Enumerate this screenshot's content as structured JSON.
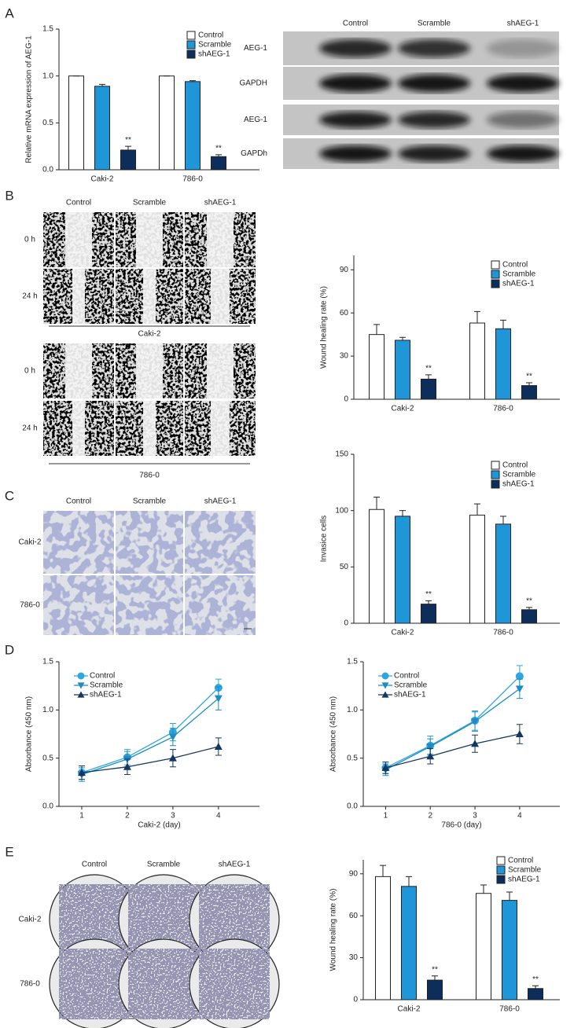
{
  "figure": {
    "panel_labels": [
      "A",
      "B",
      "C",
      "D",
      "E"
    ],
    "blot": {
      "columns": [
        "Control",
        "Scramble",
        "shAEG-1"
      ],
      "rows": [
        "AEG-1",
        "GAPDH",
        "AEG-1",
        "GAPDh"
      ]
    },
    "wound": {
      "columns": [
        "Control",
        "Scramble",
        "shAEG-1"
      ],
      "blocks": [
        {
          "rows": [
            "0 h",
            "24 h"
          ],
          "caption": "Caki-2"
        },
        {
          "rows": [
            "0 h",
            "24 h"
          ],
          "caption": "786-0"
        }
      ]
    },
    "invasion": {
      "columns": [
        "Control",
        "Scramble",
        "shAEG-1"
      ],
      "rows": [
        "Caki-2",
        "786-0"
      ]
    },
    "colony": {
      "columns": [
        "Control",
        "Scramble",
        "shAEG-1"
      ],
      "rows": [
        "Caki-2",
        "786-0"
      ]
    }
  },
  "chart_data": [
    {
      "type": "bar",
      "ylabel": "Relative mRNA expression of AEG-1",
      "categories": [
        "Caki-2",
        "786-0"
      ],
      "series": [
        {
          "name": "Control",
          "color": "#ffffff",
          "values": [
            1.0,
            1.0
          ],
          "errors": [
            0,
            0
          ]
        },
        {
          "name": "Scramble",
          "color": "#1e96d8",
          "values": [
            0.89,
            0.94
          ],
          "errors": [
            0.02,
            0.01
          ]
        },
        {
          "name": "shAEG-1",
          "color": "#0d2d5a",
          "values": [
            0.21,
            0.14
          ],
          "errors": [
            0.04,
            0.02
          ],
          "significance": [
            "**",
            "**"
          ]
        }
      ],
      "ylim": [
        0,
        1.5
      ],
      "yticks": [
        {
          "value": 0,
          "label": "0.0"
        },
        0.5,
        {
          "value": 1,
          "label": "1.0"
        },
        1.5
      ]
    },
    {
      "type": "bar",
      "ylabel": "Wound healing rate (%)",
      "categories": [
        "Caki-2",
        "786-0"
      ],
      "series": [
        {
          "name": "Control",
          "color": "#ffffff",
          "values": [
            45,
            53
          ],
          "errors": [
            7,
            8
          ]
        },
        {
          "name": "Scramble",
          "color": "#1e96d8",
          "values": [
            41,
            49
          ],
          "errors": [
            2,
            6
          ]
        },
        {
          "name": "shAEG-1",
          "color": "#0d2d5a",
          "values": [
            14,
            9.5
          ],
          "errors": [
            3,
            2
          ],
          "significance": [
            "**",
            "**"
          ]
        }
      ],
      "ylim": [
        0,
        100
      ],
      "yticks": [
        0,
        30,
        60,
        90
      ]
    },
    {
      "type": "bar",
      "ylabel": "Invasice cells",
      "categories": [
        "Caki-2",
        "786-0"
      ],
      "series": [
        {
          "name": "Control",
          "color": "#ffffff",
          "values": [
            101,
            96
          ],
          "errors": [
            11,
            10
          ]
        },
        {
          "name": "Scramble",
          "color": "#1e96d8",
          "values": [
            95,
            88
          ],
          "errors": [
            5,
            7
          ]
        },
        {
          "name": "shAEG-1",
          "color": "#0d2d5a",
          "values": [
            17,
            12
          ],
          "errors": [
            3,
            2
          ],
          "significance": [
            "**",
            "**"
          ]
        }
      ],
      "ylim": [
        0,
        150
      ],
      "yticks": [
        0,
        50,
        100,
        150
      ]
    },
    {
      "type": "line",
      "xlabel": "Caki-2 (day)",
      "ylabel": "Absorbance (450 nm)",
      "x": [
        1,
        2,
        3,
        4
      ],
      "series": [
        {
          "name": "Control",
          "color": "#2ea6e0",
          "marker": "circle",
          "values": [
            0.35,
            0.51,
            0.77,
            1.23
          ],
          "errors": [
            0.07,
            0.08,
            0.09,
            0.09
          ]
        },
        {
          "name": "Scramble",
          "color": "#1b8cc4",
          "marker": "triangle-down",
          "values": [
            0.33,
            0.49,
            0.72,
            1.12
          ],
          "errors": [
            0.07,
            0.08,
            0.09,
            0.12
          ]
        },
        {
          "name": "shAEG-1",
          "color": "#14375f",
          "marker": "triangle-up",
          "values": [
            0.35,
            0.41,
            0.5,
            0.62
          ],
          "errors": [
            0.07,
            0.08,
            0.09,
            0.09
          ]
        }
      ],
      "xlim": [
        0.5,
        4.9
      ],
      "xticks": [
        1,
        2,
        3,
        4
      ],
      "ylim": [
        0,
        1.5
      ],
      "yticks": [
        {
          "value": 0,
          "label": "0.0"
        },
        0.5,
        {
          "value": 1,
          "label": "1.0"
        },
        1.5
      ]
    },
    {
      "type": "line",
      "xlabel": "786-0 (day)",
      "ylabel": "Absorbance (450 nm)",
      "x": [
        1,
        2,
        3,
        4
      ],
      "series": [
        {
          "name": "Control",
          "color": "#2ea6e0",
          "marker": "circle",
          "values": [
            0.4,
            0.63,
            0.89,
            1.35
          ],
          "errors": [
            0.06,
            0.1,
            0.1,
            0.11
          ]
        },
        {
          "name": "Scramble",
          "color": "#1b8cc4",
          "marker": "triangle-down",
          "values": [
            0.38,
            0.62,
            0.88,
            1.22
          ],
          "errors": [
            0.06,
            0.08,
            0.1,
            0.1
          ]
        },
        {
          "name": "shAEG-1",
          "color": "#14375f",
          "marker": "triangle-up",
          "values": [
            0.4,
            0.52,
            0.65,
            0.75
          ],
          "errors": [
            0.06,
            0.08,
            0.09,
            0.1
          ]
        }
      ],
      "xlim": [
        0.5,
        4.9
      ],
      "xticks": [
        1,
        2,
        3,
        4
      ],
      "ylim": [
        0,
        1.5
      ],
      "yticks": [
        {
          "value": 0,
          "label": "0.0"
        },
        0.5,
        {
          "value": 1,
          "label": "1.0"
        },
        1.5
      ]
    },
    {
      "type": "bar",
      "ylabel": "Wound healing rate (%)",
      "categories": [
        "Caki-2",
        "786-0"
      ],
      "series": [
        {
          "name": "Control",
          "color": "#ffffff",
          "values": [
            88,
            76
          ],
          "errors": [
            8,
            6
          ]
        },
        {
          "name": "Scramble",
          "color": "#1e96d8",
          "values": [
            81,
            71
          ],
          "errors": [
            7,
            6
          ]
        },
        {
          "name": "shAEG-1",
          "color": "#0d2d5a",
          "values": [
            14,
            8
          ],
          "errors": [
            3,
            2
          ],
          "significance": [
            "**",
            "**"
          ]
        }
      ],
      "ylim": [
        0,
        100
      ],
      "yticks": [
        0,
        30,
        60,
        90
      ]
    }
  ]
}
